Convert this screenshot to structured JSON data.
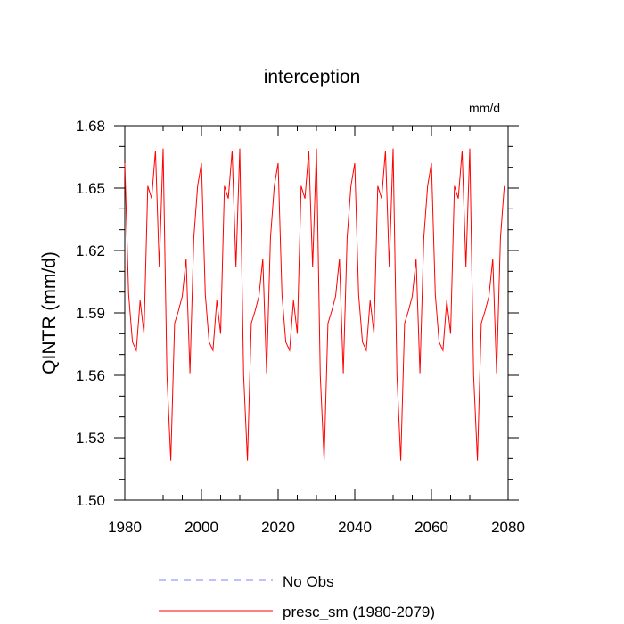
{
  "chart_data": {
    "type": "line",
    "title": "interception",
    "units": "mm/d",
    "xlabel": "",
    "ylabel": "QINTR  (mm/d)",
    "xlim": [
      1980,
      2080
    ],
    "ylim": [
      1.5,
      1.68
    ],
    "xticks": [
      1980,
      2000,
      2020,
      2040,
      2060,
      2080
    ],
    "xtick_labels": [
      "1980",
      "2000",
      "2020",
      "2040",
      "2060",
      "2080"
    ],
    "yticks": [
      1.5,
      1.53,
      1.56,
      1.59,
      1.62,
      1.65,
      1.68
    ],
    "ytick_labels": [
      "1.50",
      "1.53",
      "1.56",
      "1.59",
      "1.62",
      "1.65",
      "1.68"
    ],
    "grid": false,
    "legend_position": "bottom",
    "series": [
      {
        "name": "No Obs",
        "color": "#8080ff",
        "dash": true,
        "values": []
      },
      {
        "name": "presc_sm (1980-2079)",
        "color": "#ff0000",
        "dash": false,
        "start_year": 1980,
        "step": 1,
        "values": [
          1.662,
          1.599,
          1.576,
          1.572,
          1.596,
          1.58,
          1.651,
          1.645,
          1.668,
          1.612,
          1.669,
          1.56,
          1.519,
          1.585,
          1.591,
          1.598,
          1.616,
          1.561,
          1.626,
          1.651,
          1.662,
          1.599,
          1.576,
          1.572,
          1.596,
          1.58,
          1.651,
          1.645,
          1.668,
          1.612,
          1.669,
          1.56,
          1.519,
          1.585,
          1.591,
          1.598,
          1.616,
          1.561,
          1.626,
          1.651,
          1.662,
          1.599,
          1.576,
          1.572,
          1.596,
          1.58,
          1.651,
          1.645,
          1.668,
          1.612,
          1.669,
          1.56,
          1.519,
          1.585,
          1.591,
          1.598,
          1.616,
          1.561,
          1.626,
          1.651,
          1.662,
          1.599,
          1.576,
          1.572,
          1.596,
          1.58,
          1.651,
          1.645,
          1.668,
          1.612,
          1.669,
          1.56,
          1.519,
          1.585,
          1.591,
          1.598,
          1.616,
          1.561,
          1.626,
          1.651,
          1.662,
          1.599,
          1.576,
          1.572,
          1.596,
          1.58,
          1.651,
          1.645,
          1.668,
          1.612,
          1.669,
          1.56,
          1.519,
          1.585,
          1.591,
          1.598,
          1.616,
          1.561,
          1.626,
          1.651
        ]
      }
    ]
  }
}
